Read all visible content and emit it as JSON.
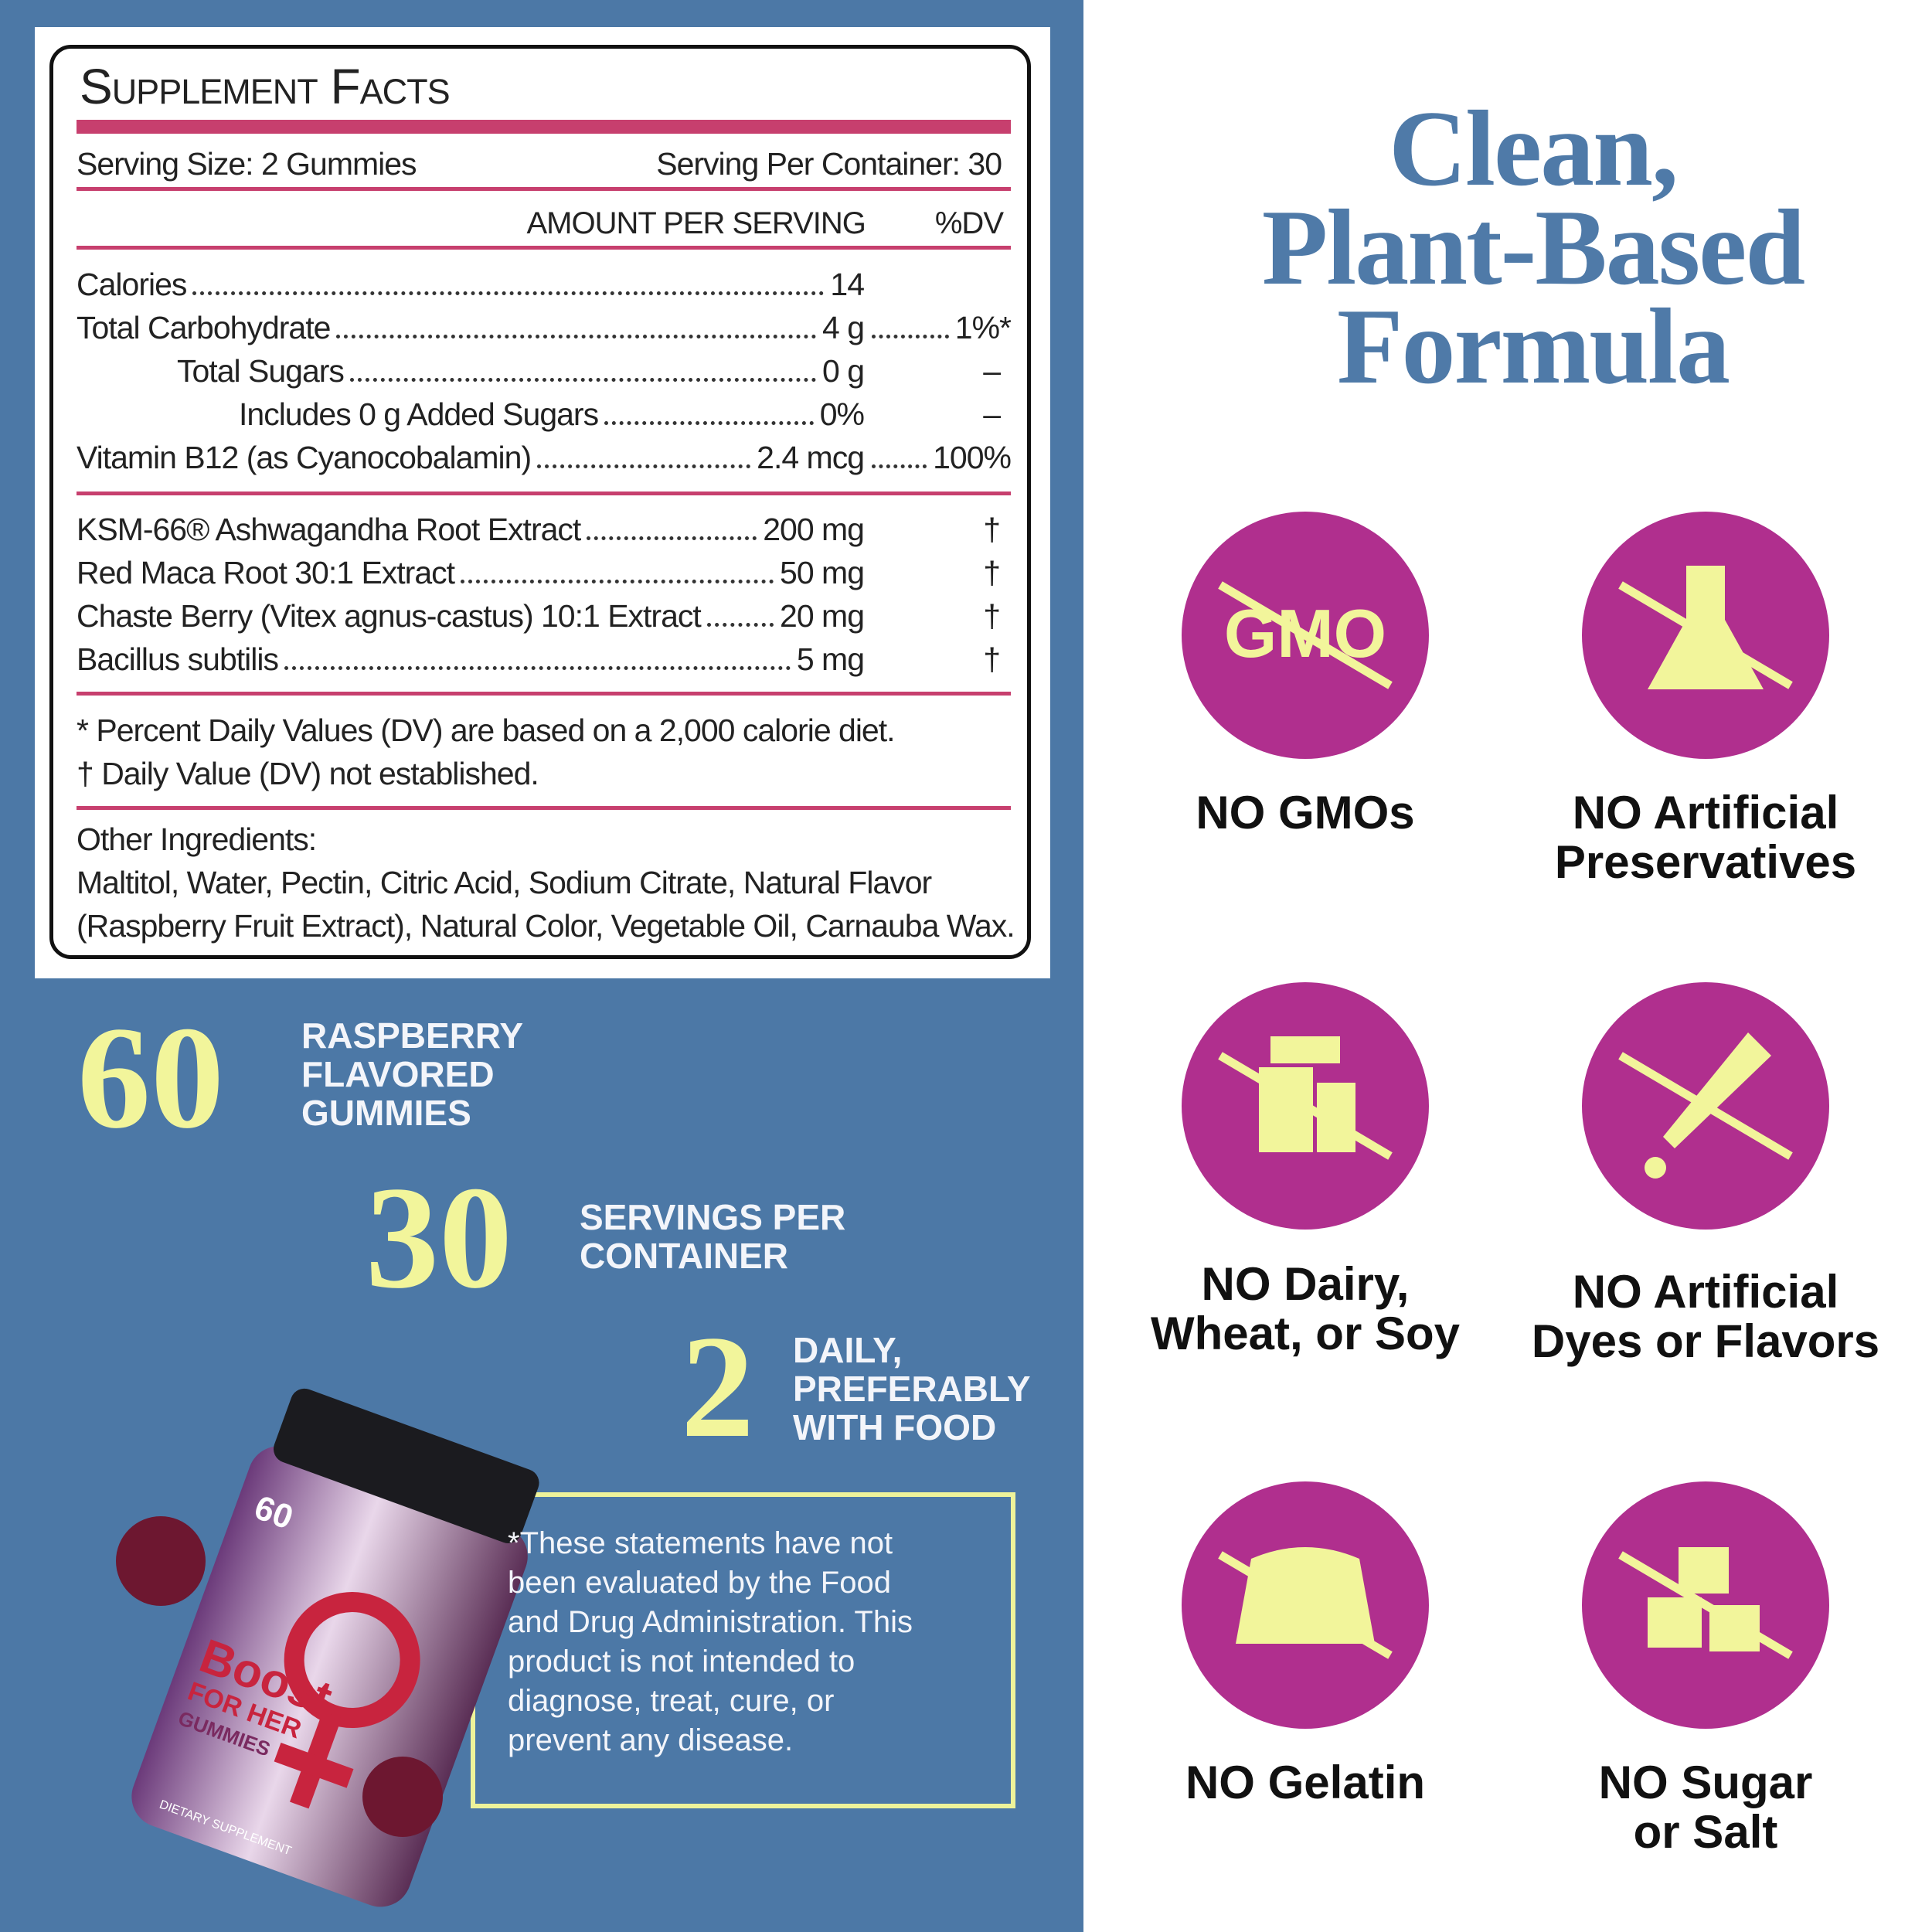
{
  "facts": {
    "title": "Supplement Facts",
    "serving_size": "Serving Size: 2 Gummies",
    "servings_per_container": "Serving Per Container: 30",
    "amount_header": "AMOUNT PER SERVING",
    "dv_header": "%DV",
    "nutrients": [
      {
        "name": "Calories",
        "amount": "14"
      },
      {
        "name": "Total Carbohydrate",
        "amount": "4 g",
        "dv": "1%*"
      },
      {
        "name": "Total Sugars",
        "amount": "0 g",
        "dv": "–"
      },
      {
        "name": "Includes 0 g Added Sugars",
        "amount": "0%",
        "dv": "–"
      },
      {
        "name": "Vitamin B12 (as Cyanocobalamin)",
        "amount": "2.4 mcg",
        "dv": "100%"
      }
    ],
    "ingredients": [
      {
        "name": "KSM-66® Ashwagandha Root Extract",
        "amount": "200 mg",
        "dv": "†"
      },
      {
        "name": "Red Maca Root 30:1 Extract",
        "amount": "50 mg",
        "dv": "†"
      },
      {
        "name": "Chaste Berry (Vitex agnus-castus) 10:1 Extract",
        "amount": "20 mg",
        "dv": "†"
      },
      {
        "name": "Bacillus subtilis",
        "amount": "5 mg",
        "dv": "†"
      }
    ],
    "footnotes": [
      "* Percent Daily Values (DV) are based on a 2,000 calorie diet.",
      "† Daily Value (DV) not established."
    ],
    "other_title": "Other Ingredients:",
    "other_lines": [
      "Maltitol, Water, Pectin, Citric Acid, Sodium Citrate, Natural Flavor",
      "(Raspberry Fruit Extract), Natural Color, Vegetable Oil, Carnauba Wax."
    ]
  },
  "stats": [
    {
      "number": "60",
      "lines": [
        "RASPBERRY",
        "FLAVORED",
        "GUMMIES"
      ]
    },
    {
      "number": "30",
      "lines": [
        "SERVINGS PER",
        "CONTAINER"
      ]
    },
    {
      "number": "2",
      "lines": [
        "DAILY,",
        "PREFERABLY",
        "WITH FOOD"
      ]
    }
  ],
  "disclaimer": [
    "*These statements have not",
    "been evaluated by the Food",
    "and Drug Administration. This",
    "product is not intended to",
    "diagnose, treat, cure, or",
    "prevent any disease."
  ],
  "product": {
    "count": "60",
    "brand": "Boost",
    "sub": "FOR HER",
    "kind": "GUMMIES",
    "note": "DIETARY SUPPLEMENT"
  },
  "heading": [
    "Clean,",
    "Plant-Based",
    "Formula"
  ],
  "gmo_icon_text": "GMO",
  "features": [
    {
      "prefix": "NO",
      "lines": [
        "GMOs"
      ]
    },
    {
      "prefix": "NO",
      "lines": [
        "Artificial",
        "Preservatives"
      ]
    },
    {
      "prefix": "NO",
      "lines": [
        "Dairy,",
        "Wheat, or Soy"
      ]
    },
    {
      "prefix": "NO",
      "lines": [
        "Artificial",
        "Dyes or Flavors"
      ]
    },
    {
      "prefix": "NO",
      "lines": [
        "Gelatin"
      ]
    },
    {
      "prefix": "NO",
      "lines": [
        "Sugar",
        "or Salt"
      ]
    }
  ]
}
